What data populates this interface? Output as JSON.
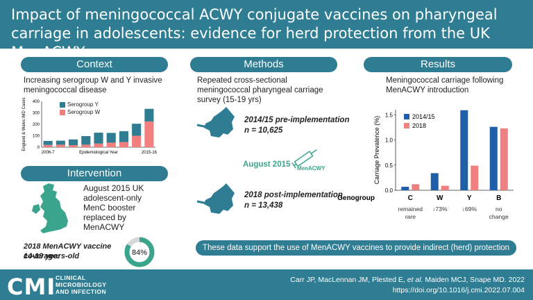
{
  "header": {
    "title": "Impact of meningococcal ACWY conjugate vaccines on pharyngeal carriage in adolescents: evidence for herd protection from the UK MenACWY programme"
  },
  "context": {
    "heading": "Context",
    "text": "Increasing serogroup W and Y invasive meningococcal disease",
    "chart_ylabel": "England & Wales IMD Cases",
    "chart_xlabel": "Epidemiological Year",
    "x_start": "2006-7",
    "x_end": "2015-16",
    "legend_y": "Serogroup Y",
    "legend_w": "Serogroup W"
  },
  "intervention": {
    "heading": "Intervention",
    "text": "August 2015 UK adolescent-only MenC booster replaced by MenACWY",
    "coverage_text": "2018 MenACWY vaccine coverage:",
    "coverage_age": "14-19 years-old",
    "coverage_pct": "84%"
  },
  "methods": {
    "heading": "Methods",
    "text": "Repeated cross-sectional meningococcal pharyngeal carriage survey (15-19 yrs)",
    "pre_label": "2014/15 pre-implementation",
    "pre_n": "n = 10,625",
    "aug": "August 2015",
    "vaccine": "MenACWY",
    "post_label": "2018 post-implementation",
    "post_n": "n = 13,438"
  },
  "results": {
    "heading": "Results",
    "text": "Meningococcal carriage following MenACWY introduction",
    "notes": [
      "remained rare",
      "↓73%",
      "↓69%",
      "no change"
    ]
  },
  "banner": "These data support the use of MenACWY vaccines to provide indirect (herd) protection",
  "footer": {
    "logo": "CMI",
    "logo_sub": [
      "CLINICAL",
      "MICROBIOLOGY",
      "AND INFECTION"
    ],
    "cite1_pre": "Carr JP, MacLennan JM, Plested E, ",
    "cite1_it": "et al.",
    "cite1_post": " Maiden MCJ, Snape MD. 2022",
    "cite2": "https://doi.org/10.1016/j.cmi.2022.07.004"
  },
  "colors": {
    "teal": "#2f7d93",
    "serogroup_y": "#2f7d93",
    "serogroup_w": "#f08080",
    "blue": "#1f5ea8",
    "green": "#3aa58c"
  },
  "chart_data": [
    {
      "type": "bar",
      "title": "",
      "xlabel": "Epidemiological Year",
      "ylabel": "England & Wales IMD Cases",
      "ylim": [
        0,
        400
      ],
      "yticks": [
        0,
        100,
        200,
        300,
        400
      ],
      "categories": [
        "2006-7",
        "",
        "",
        "",
        "",
        "",
        "",
        "",
        "2015-16"
      ],
      "series": [
        {
          "name": "Serogroup W",
          "values": [
            20,
            22,
            18,
            22,
            32,
            40,
            45,
            100,
            225
          ]
        },
        {
          "name": "Serogroup Y",
          "values": [
            35,
            35,
            50,
            75,
            95,
            85,
            95,
            105,
            110
          ]
        }
      ],
      "stacked": true
    },
    {
      "type": "bar",
      "title": "",
      "xlabel": "Genogroup",
      "ylabel": "Carriage Prevalence (%)",
      "ylim": [
        0,
        1.6
      ],
      "yticks": [
        0,
        0.5,
        1.0,
        1.5
      ],
      "categories": [
        "C",
        "W",
        "Y",
        "B"
      ],
      "series": [
        {
          "name": "2014/15",
          "values": [
            0.07,
            0.34,
            1.59,
            1.26
          ]
        },
        {
          "name": "2018",
          "values": [
            0.12,
            0.09,
            0.49,
            1.23
          ]
        }
      ]
    }
  ]
}
